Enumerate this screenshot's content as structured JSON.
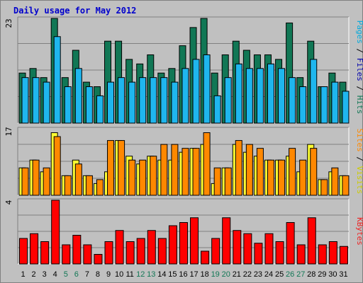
{
  "title": "Daily usage for May 2012",
  "chart_data": [
    {
      "type": "bar",
      "ymax_label": "23",
      "ylim": [
        0,
        23
      ],
      "grid": true,
      "right_label": [
        {
          "text": "Pages",
          "color": "#00aadd"
        },
        {
          "text": " / ",
          "color": "#000000"
        },
        {
          "text": "Files",
          "color": "#0000aa"
        },
        {
          "text": " / ",
          "color": "#000000"
        },
        {
          "text": "Hits",
          "color": "#117755"
        }
      ],
      "series": [
        {
          "name": "Hits",
          "color": "#117755",
          "values": [
            11,
            12,
            10,
            23,
            10,
            16,
            9,
            8,
            18,
            18,
            14,
            13,
            15,
            11,
            12,
            17,
            21,
            23,
            11,
            15,
            18,
            16,
            15,
            15,
            14,
            22,
            10,
            18,
            8,
            11,
            9
          ]
        },
        {
          "name": "Files",
          "color": "#1fb6ee",
          "values": [
            10,
            10,
            9,
            19,
            8,
            12,
            8,
            6,
            9,
            10,
            9,
            10,
            10,
            10,
            9,
            12,
            14,
            15,
            6,
            10,
            13,
            12,
            12,
            13,
            12,
            10,
            8,
            14,
            8,
            9,
            7
          ]
        }
      ]
    },
    {
      "type": "bar",
      "ymax_label": "17",
      "ylim": [
        0,
        17
      ],
      "grid": true,
      "right_label": [
        {
          "text": "Sites",
          "color": "#ff8800"
        },
        {
          "text": " / ",
          "color": "#000000"
        },
        {
          "text": "Visits",
          "color": "#cccc00"
        }
      ],
      "series": [
        {
          "name": "Visits",
          "color": "#ffff33",
          "values": [
            7,
            9,
            6,
            16,
            5,
            9,
            5,
            3,
            6,
            14,
            10,
            8,
            10,
            9,
            9,
            11,
            12,
            13,
            3,
            7,
            13,
            11,
            10,
            9,
            9,
            10,
            6,
            13,
            4,
            6,
            5
          ]
        },
        {
          "name": "Sites",
          "color": "#ff8800",
          "values": [
            7,
            9,
            7,
            15,
            5,
            8,
            5,
            4,
            14,
            14,
            9,
            9,
            10,
            13,
            13,
            12,
            12,
            16,
            7,
            7,
            14,
            13,
            12,
            9,
            9,
            12,
            9,
            12,
            4,
            7,
            5
          ]
        }
      ]
    },
    {
      "type": "bar",
      "ymax_label": "4",
      "ylim": [
        0,
        4
      ],
      "grid": true,
      "right_label": [
        {
          "text": "KBytes",
          "color": "#ee2222"
        }
      ],
      "series": [
        {
          "name": "KBytes",
          "color": "#ff0000",
          "values": [
            1.6,
            1.9,
            1.4,
            4.0,
            1.2,
            1.8,
            1.2,
            0.6,
            1.4,
            2.1,
            1.4,
            1.6,
            2.1,
            1.6,
            2.4,
            2.6,
            2.9,
            0.8,
            1.6,
            2.9,
            2.1,
            1.9,
            1.3,
            1.9,
            1.4,
            2.6,
            1.2,
            2.9,
            1.2,
            1.4,
            1.1
          ]
        }
      ]
    }
  ],
  "x_labels": [
    "1",
    "2",
    "3",
    "4",
    "5",
    "6",
    "7",
    "8",
    "9",
    "10",
    "11",
    "12",
    "13",
    "14",
    "15",
    "16",
    "17",
    "18",
    "19",
    "20",
    "21",
    "22",
    "23",
    "24",
    "25",
    "26",
    "27",
    "28",
    "29",
    "30",
    "31"
  ],
  "weekend_days": [
    5,
    6,
    12,
    13,
    19,
    20,
    26,
    27
  ],
  "weekday_color": "#000000",
  "weekend_color": "#117755"
}
